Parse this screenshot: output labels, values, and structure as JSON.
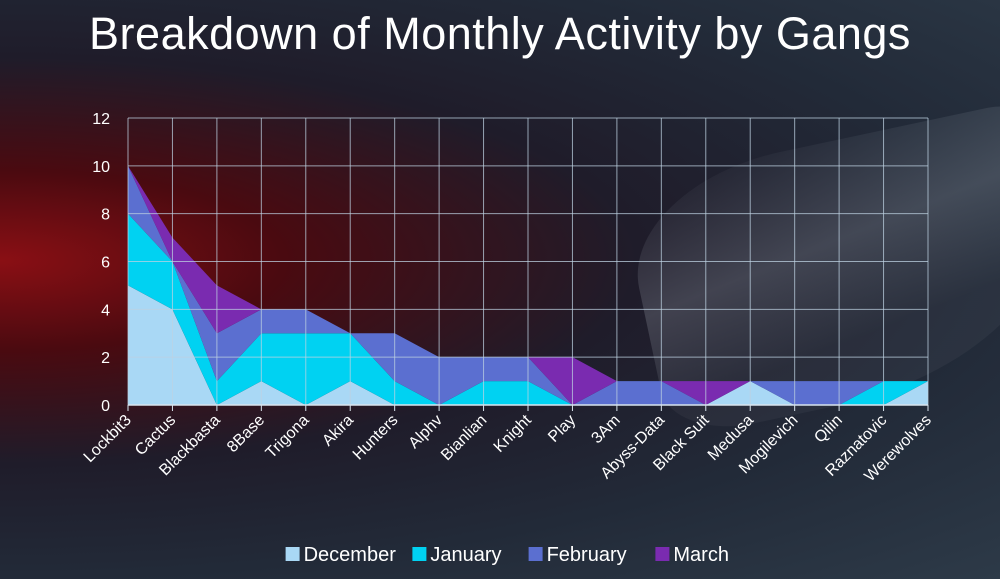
{
  "title": "Breakdown of Monthly Activity by Gangs",
  "chart_data": {
    "type": "area",
    "stacked": true,
    "title": "Breakdown of Monthly Activity by Gangs",
    "xlabel": "",
    "ylabel": "",
    "ylim": [
      0,
      12
    ],
    "yticks": [
      "0",
      "2",
      "4",
      "6",
      "8",
      "10",
      "12"
    ],
    "grid": true,
    "legend": "bottom",
    "categories": [
      "Lockbit3",
      "Cactus",
      "Blackbasta",
      "8Base",
      "Trigona",
      "Akira",
      "Hunters",
      "Alphv",
      "Bianlian",
      "Knight",
      "Play",
      "3Am",
      "Abyss-Data",
      "Black Suit",
      "Medusa",
      "Mogilevich",
      "Qilin",
      "Raznatovic",
      "Werewolves"
    ],
    "series": [
      {
        "name": "December",
        "color": "#a9d8f5",
        "values": [
          5,
          4,
          0,
          1,
          0,
          1,
          0,
          0,
          0,
          0,
          0,
          0,
          0,
          0,
          1,
          0,
          0,
          0,
          1
        ]
      },
      {
        "name": "January",
        "color": "#00d2f2",
        "values": [
          3,
          2,
          1,
          2,
          3,
          2,
          1,
          0,
          1,
          1,
          0,
          0,
          0,
          0,
          0,
          0,
          0,
          1,
          0
        ]
      },
      {
        "name": "February",
        "color": "#5b6fd0",
        "values": [
          2,
          0,
          2,
          1,
          1,
          0,
          2,
          2,
          1,
          1,
          0,
          1,
          1,
          0,
          0,
          1,
          1,
          0,
          0
        ]
      },
      {
        "name": "March",
        "color": "#7a2bb0",
        "values": [
          0,
          1,
          2,
          0,
          0,
          0,
          0,
          0,
          0,
          0,
          2,
          0,
          0,
          1,
          0,
          0,
          0,
          0,
          0
        ]
      }
    ]
  }
}
